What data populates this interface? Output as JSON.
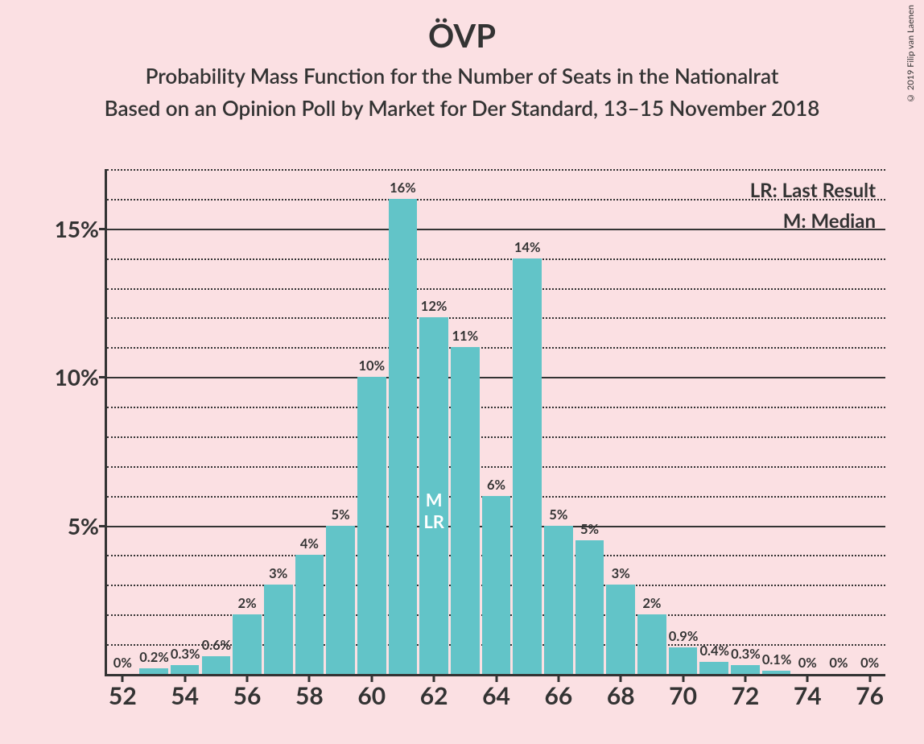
{
  "title": "ÖVP",
  "subtitle1": "Probability Mass Function for the Number of Seats in the Nationalrat",
  "subtitle2": "Based on an Opinion Poll by Market for Der Standard, 13–15 November 2018",
  "copyright": "© 2019 Filip van Laenen",
  "legend": {
    "lr": "LR: Last Result",
    "m": "M: Median"
  },
  "chart": {
    "type": "bar",
    "bar_color": "#62c4c8",
    "background_color": "#fbe0e3",
    "grid_major_color": "#333333",
    "axis_color": "#333333",
    "y_axis": {
      "min": 0,
      "max": 17.0,
      "major_ticks": [
        5,
        10,
        15
      ],
      "minor_step": 1,
      "label_suffix": "%",
      "label_fontsize": 28
    },
    "x_axis": {
      "min": 52,
      "max": 76,
      "tick_step": 2,
      "tick_labels": [
        52,
        54,
        56,
        58,
        60,
        62,
        64,
        66,
        68,
        70,
        72,
        74,
        76
      ],
      "label_fontsize": 30
    },
    "bars": [
      {
        "x": 52,
        "v": 0.0,
        "lbl": "0%"
      },
      {
        "x": 53,
        "v": 0.2,
        "lbl": "0.2%"
      },
      {
        "x": 54,
        "v": 0.3,
        "lbl": "0.3%"
      },
      {
        "x": 55,
        "v": 0.6,
        "lbl": "0.6%"
      },
      {
        "x": 56,
        "v": 2.0,
        "lbl": "2%"
      },
      {
        "x": 57,
        "v": 3.0,
        "lbl": "3%"
      },
      {
        "x": 58,
        "v": 4.0,
        "lbl": "4%"
      },
      {
        "x": 59,
        "v": 5.0,
        "lbl": "5%"
      },
      {
        "x": 60,
        "v": 10.0,
        "lbl": "10%"
      },
      {
        "x": 61,
        "v": 16.0,
        "lbl": "16%"
      },
      {
        "x": 62,
        "v": 12.0,
        "lbl": "12%",
        "inner": "M\nLR"
      },
      {
        "x": 63,
        "v": 11.0,
        "lbl": "11%"
      },
      {
        "x": 64,
        "v": 6.0,
        "lbl": "6%"
      },
      {
        "x": 65,
        "v": 14.0,
        "lbl": "14%"
      },
      {
        "x": 66,
        "v": 5.0,
        "lbl": "5%"
      },
      {
        "x": 67,
        "v": 4.5,
        "lbl": "5%"
      },
      {
        "x": 68,
        "v": 3.0,
        "lbl": "3%"
      },
      {
        "x": 69,
        "v": 2.0,
        "lbl": "2%"
      },
      {
        "x": 70,
        "v": 0.9,
        "lbl": "0.9%"
      },
      {
        "x": 71,
        "v": 0.4,
        "lbl": "0.4%"
      },
      {
        "x": 72,
        "v": 0.3,
        "lbl": "0.3%"
      },
      {
        "x": 73,
        "v": 0.1,
        "lbl": "0.1%"
      },
      {
        "x": 74,
        "v": 0.0,
        "lbl": "0%"
      },
      {
        "x": 75,
        "v": 0.0,
        "lbl": "0%"
      },
      {
        "x": 76,
        "v": 0.0,
        "lbl": "0%"
      }
    ]
  }
}
